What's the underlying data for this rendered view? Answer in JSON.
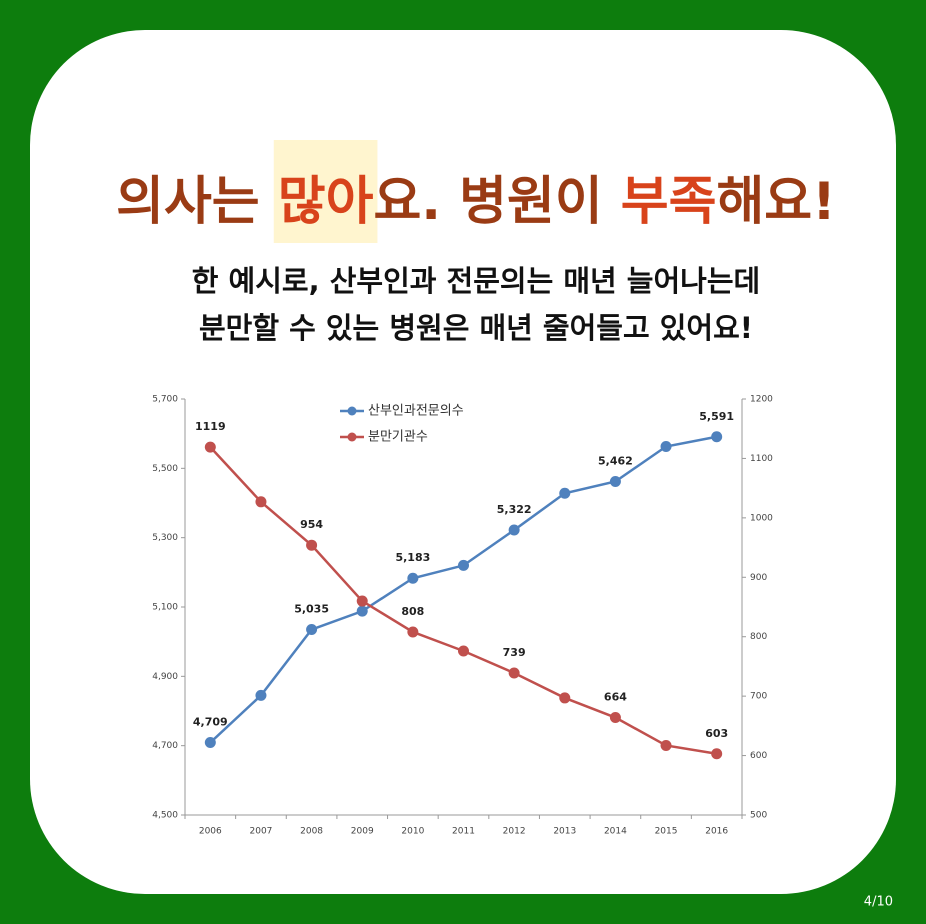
{
  "chart_data": {
    "type": "line",
    "title": [
      {
        "text": "의사는 ",
        "color": "#9a3b14"
      },
      {
        "text": "많아",
        "color": "#d8431b",
        "highlight": "#fff5cf"
      },
      {
        "text": "요. 병원이 ",
        "color": "#9a3b14"
      },
      {
        "text": "부족",
        "color": "#d8431b"
      },
      {
        "text": "해요!",
        "color": "#9a3b14"
      }
    ],
    "subtitle": [
      "한 예시로, 산부인과 전문의는 매년 늘어나는데",
      "분만할 수 있는 병원은 매년 줄어들고 있어요!"
    ],
    "page_number": "4/10",
    "categories": [
      "2006",
      "2007",
      "2008",
      "2009",
      "2010",
      "2011",
      "2012",
      "2013",
      "2014",
      "2015",
      "2016"
    ],
    "series": [
      {
        "name": "산부인과전문의수",
        "color": "#4f81bd",
        "values": [
          4709,
          4845,
          5035,
          5088,
          5183,
          5220,
          5322,
          5428,
          5462,
          5563,
          5591
        ],
        "value_labels": [
          "4,709",
          null,
          "5,035",
          null,
          "5,183",
          null,
          "5,322",
          null,
          "5,462",
          null,
          "5,591"
        ]
      },
      {
        "name": "분만기관수",
        "color": "#c0504d",
        "axis": "y2",
        "values": [
          1119,
          1027,
          954,
          860,
          808,
          776,
          739,
          697,
          664,
          617,
          603
        ],
        "value_labels": [
          "1119",
          null,
          "954",
          null,
          "808",
          null,
          "739",
          null,
          "664",
          null,
          "603"
        ]
      }
    ],
    "ylim": [
      4500,
      5700
    ],
    "yticks": [
      {
        "value": 4500,
        "label": "4,500"
      },
      {
        "value": 4700,
        "label": "4,700"
      },
      {
        "value": 4900,
        "label": "4,900"
      },
      {
        "value": 5100,
        "label": "5,100"
      },
      {
        "value": 5300,
        "label": "5,300"
      },
      {
        "value": 5500,
        "label": "5,500"
      },
      {
        "value": 5700,
        "label": "5,700"
      }
    ],
    "y2lim": [
      500,
      1200
    ],
    "y2ticks": [
      500,
      600,
      700,
      800,
      900,
      1000,
      1100,
      1200
    ],
    "grid": false
  }
}
